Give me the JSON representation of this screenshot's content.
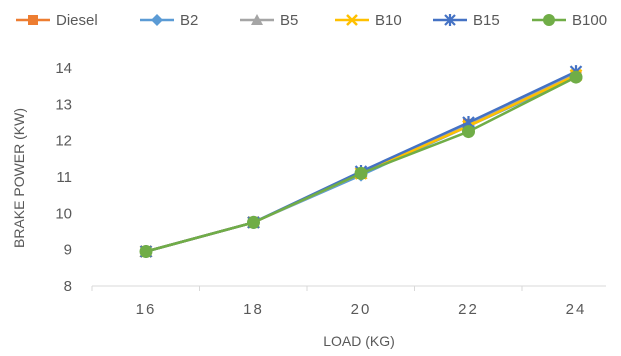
{
  "chart_data": {
    "type": "line",
    "title": "",
    "xlabel": "LOAD (KG)",
    "ylabel": "BRAKE POWER (KW)",
    "categories": [
      "16",
      "18",
      "20",
      "22",
      "24"
    ],
    "ylim": [
      8,
      14
    ],
    "yticks": [
      "8",
      "9",
      "10",
      "11",
      "12",
      "13",
      "14"
    ],
    "grid": false,
    "legend": "top",
    "series": [
      {
        "name": "Diesel",
        "values": [
          8.95,
          9.75,
          11.1,
          12.45,
          13.8
        ],
        "color": "#ED7D31",
        "marker": "square"
      },
      {
        "name": "B2",
        "values": [
          8.95,
          9.75,
          11.05,
          12.4,
          13.75
        ],
        "color": "#5B9BD5",
        "marker": "diamond"
      },
      {
        "name": "B5",
        "values": [
          8.95,
          9.75,
          11.1,
          12.45,
          13.85
        ],
        "color": "#A5A5A5",
        "marker": "triangle"
      },
      {
        "name": "B10",
        "values": [
          8.95,
          9.75,
          11.1,
          12.4,
          13.8
        ],
        "color": "#FFC000",
        "marker": "x"
      },
      {
        "name": "B15",
        "values": [
          8.95,
          9.75,
          11.15,
          12.5,
          13.9
        ],
        "color": "#4472C4",
        "marker": "star"
      },
      {
        "name": "B100",
        "values": [
          8.95,
          9.75,
          11.1,
          12.25,
          13.75
        ],
        "color": "#70AD47",
        "marker": "circle"
      }
    ]
  }
}
